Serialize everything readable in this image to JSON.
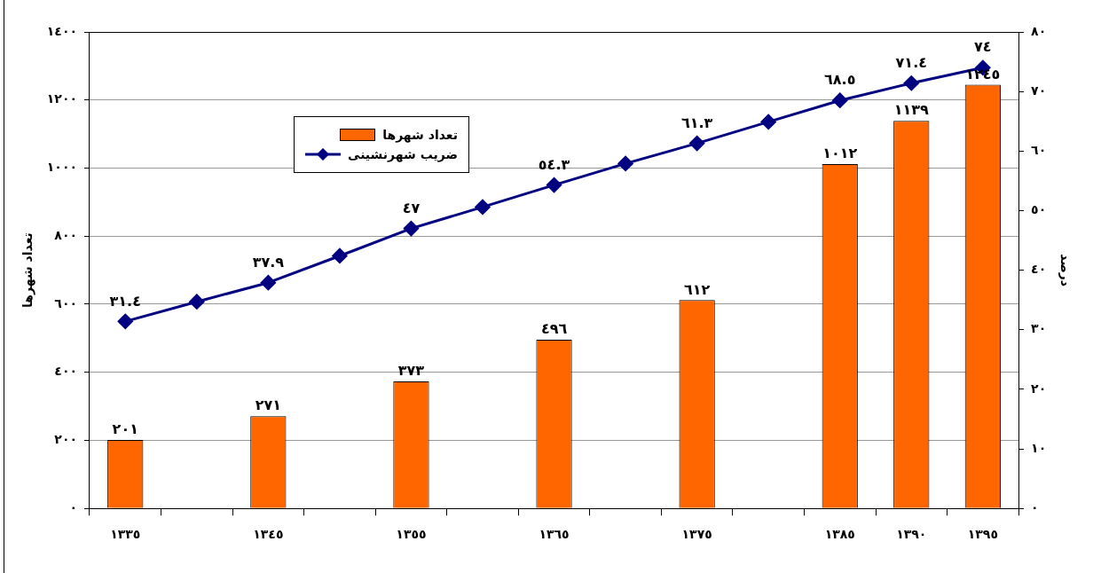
{
  "chart_data": {
    "type": "bar",
    "ylabel": "تعداد شهرها",
    "y2label": "درصد",
    "categories": [
      "١٣٣٥",
      null,
      "١٣٤٥",
      null,
      "١٣٥٥",
      null,
      "١٣٦٥",
      null,
      "١٣٧٥",
      null,
      "١٣٨٥",
      "١٣٩٠",
      "١٣٩٥"
    ],
    "series": [
      {
        "name": "تعداد شهرها",
        "color": "#ff6600",
        "values": [
          201,
          null,
          271,
          null,
          373,
          null,
          496,
          null,
          612,
          null,
          1012,
          1139,
          1245
        ],
        "value_labels": [
          "٢٠١",
          null,
          "٢٧١",
          null,
          "٣٧٣",
          null,
          "٤٩٦",
          null,
          "٦١٢",
          null,
          "١٠١٢",
          "١١٣٩",
          "١٢٤٥"
        ]
      },
      {
        "name": "ضریب شهرنشینی",
        "type": "line",
        "axis": "y2",
        "color": "#000080",
        "marker": "diamond",
        "values": [
          31.4,
          34.7,
          37.9,
          42.4,
          47,
          50.6,
          54.3,
          57.9,
          61.3,
          64.9,
          68.5,
          71.4,
          74
        ],
        "value_labels": [
          "٣١.٤",
          null,
          "٣٧.٩",
          null,
          "٤٧",
          null,
          "٥٤.٣",
          null,
          "٦١.٣",
          null,
          "٦٨.٥",
          "٧١.٤",
          "٧٤"
        ]
      }
    ],
    "ylim": [
      0,
      1400
    ],
    "yticks": [
      {
        "value": 0,
        "label": "٠"
      },
      {
        "value": 200,
        "label": "٢٠٠"
      },
      {
        "value": 400,
        "label": "٤٠٠"
      },
      {
        "value": 600,
        "label": "٦٠٠"
      },
      {
        "value": 800,
        "label": "٨٠٠"
      },
      {
        "value": 1000,
        "label": "١٠٠٠"
      },
      {
        "value": 1200,
        "label": "١٢٠٠"
      },
      {
        "value": 1400,
        "label": "١٤٠٠"
      }
    ],
    "y2lim": [
      0,
      80
    ],
    "y2ticks": [
      {
        "value": 0,
        "label": "٠"
      },
      {
        "value": 10,
        "label": "١٠"
      },
      {
        "value": 20,
        "label": "٢٠"
      },
      {
        "value": 30,
        "label": "٣٠"
      },
      {
        "value": 40,
        "label": "٤٠"
      },
      {
        "value": 50,
        "label": "٥٠"
      },
      {
        "value": 60,
        "label": "٦٠"
      },
      {
        "value": 70,
        "label": "٧٠"
      },
      {
        "value": 80,
        "label": "٨٠"
      }
    ],
    "grid": "y",
    "legend": "top left"
  }
}
